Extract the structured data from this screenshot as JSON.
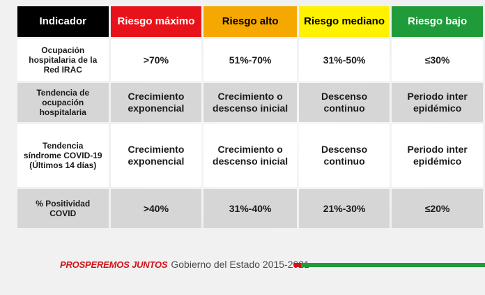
{
  "header": {
    "indicador": "Indicador",
    "riesgo_maximo": "Riesgo máximo",
    "riesgo_alto": "Riesgo alto",
    "riesgo_mediano": "Riesgo mediano",
    "riesgo_bajo": "Riesgo bajo"
  },
  "rows": [
    {
      "label_lines": [
        "Ocupación",
        "hospitalaria de la",
        "Red IRAC"
      ],
      "values": [
        [
          ">70%"
        ],
        [
          "51%-70%"
        ],
        [
          "31%-50%"
        ],
        [
          "≤30%"
        ]
      ]
    },
    {
      "label_lines": [
        "Tendencia de",
        "ocupación",
        "hospitalaria"
      ],
      "values": [
        [
          "Crecimiento",
          "exponencial"
        ],
        [
          "Crecimiento o",
          "descenso inicial"
        ],
        [
          "Descenso",
          "continuo"
        ],
        [
          "Periodo inter",
          "epidémico"
        ]
      ]
    },
    {
      "label_lines": [
        "Tendencia",
        "síndrome COVID-19",
        "(Últimos 14 días)"
      ],
      "values": [
        [
          "Crecimiento",
          "exponencial"
        ],
        [
          "Crecimiento o",
          "descenso inicial"
        ],
        [
          "Descenso",
          "continuo"
        ],
        [
          "Periodo inter",
          "epidémico"
        ]
      ]
    },
    {
      "label_lines": [
        "% Positividad",
        "COVID"
      ],
      "values": [
        [
          ">40%"
        ],
        [
          "31%-40%"
        ],
        [
          "21%-30%"
        ],
        [
          "≤20%"
        ]
      ]
    }
  ],
  "footer": {
    "brand": "PROSPEREMOS JUNTOS",
    "government": "Gobierno del Estado 2015-2021"
  },
  "colors": {
    "indicador": "#000000",
    "riesgo_maximo": "#e8131a",
    "riesgo_alto": "#f5a800",
    "riesgo_mediano": "#fff200",
    "riesgo_bajo": "#1f9b3a"
  }
}
